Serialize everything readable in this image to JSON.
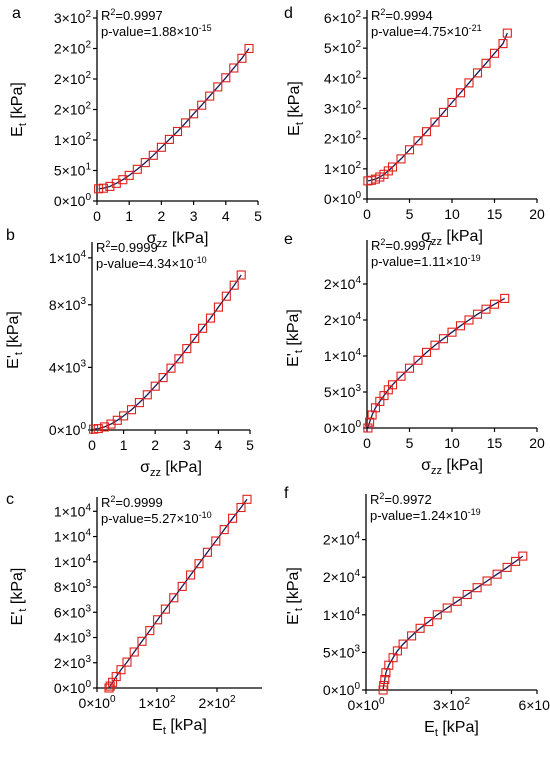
{
  "colors": {
    "marker": "#e0201b",
    "fit_line": "#1a1a5a",
    "axis": "#000000"
  },
  "chart_data": [
    {
      "type": "scatter",
      "panel_label": "a",
      "xlabel": {
        "main": "σ",
        "sub": "zz",
        "tail": " [kPa]"
      },
      "ylabel": {
        "main": "E",
        "sub": "t",
        "tail": " [kPa]"
      },
      "xlim": [
        0,
        5
      ],
      "ylim": [
        0,
        300
      ],
      "xticks": [
        {
          "v": 0,
          "label": "0"
        },
        {
          "v": 1,
          "label": "1"
        },
        {
          "v": 2,
          "label": "2"
        },
        {
          "v": 3,
          "label": "3"
        },
        {
          "v": 4,
          "label": "4"
        },
        {
          "v": 5,
          "label": "5"
        }
      ],
      "yticks": [
        {
          "v": 0,
          "m": "0×10",
          "e": "0"
        },
        {
          "v": 50,
          "m": "5×10",
          "e": "1"
        },
        {
          "v": 100,
          "m": "1×10",
          "e": "2"
        },
        {
          "v": 150,
          "m": "2×10",
          "e": "2"
        },
        {
          "v": 200,
          "m": "2×10",
          "e": "2"
        },
        {
          "v": 250,
          "m": "2×10",
          "e": "2"
        },
        {
          "v": 300,
          "m": "3×10",
          "e": "2"
        }
      ],
      "r2": "0.9997",
      "pvalue": {
        "m": "1.88×10",
        "e": "-15"
      },
      "series": [
        {
          "x": [
            0.05,
            0.2,
            0.4,
            0.6,
            0.8,
            1.0,
            1.25,
            1.5,
            1.75,
            2.0,
            2.25,
            2.5,
            2.75,
            3.0,
            3.25,
            3.5,
            3.75,
            4.0,
            4.25,
            4.5,
            4.72
          ],
          "y": [
            20,
            21,
            24,
            29,
            35,
            42,
            52,
            63,
            75,
            88,
            101,
            114,
            128,
            143,
            157,
            172,
            187,
            202,
            218,
            234,
            250
          ]
        }
      ]
    },
    {
      "type": "scatter",
      "panel_label": "b",
      "xlabel": {
        "main": "σ",
        "sub": "zz",
        "tail": " [kPa]"
      },
      "ylabel": {
        "main": "E'",
        "sub": "t",
        "tail": " [kPa]"
      },
      "xlim": [
        0,
        5
      ],
      "ylim": [
        0,
        11500
      ],
      "xticks": [
        {
          "v": 0,
          "label": "0"
        },
        {
          "v": 1,
          "label": "1"
        },
        {
          "v": 2,
          "label": "2"
        },
        {
          "v": 3,
          "label": "3"
        },
        {
          "v": 4,
          "label": "4"
        },
        {
          "v": 5,
          "label": "5"
        }
      ],
      "yticks": [
        {
          "v": 0,
          "m": "0×10",
          "e": "0"
        },
        {
          "v": 4000,
          "m": "4×10",
          "e": "3"
        },
        {
          "v": 8000,
          "m": "8×10",
          "e": "3"
        },
        {
          "v": 11000,
          "m": "1×10",
          "e": "4"
        }
      ],
      "r2": "0.9999",
      "pvalue": {
        "m": "4.34×10",
        "e": "-10"
      },
      "series": [
        {
          "x": [
            0.05,
            0.2,
            0.4,
            0.6,
            0.8,
            1.0,
            1.25,
            1.5,
            1.75,
            2.0,
            2.25,
            2.5,
            2.75,
            3.0,
            3.25,
            3.5,
            3.75,
            4.0,
            4.25,
            4.5,
            4.72
          ],
          "y": [
            50,
            90,
            200,
            380,
            620,
            900,
            1300,
            1750,
            2250,
            2800,
            3350,
            3950,
            4550,
            5200,
            5850,
            6500,
            7150,
            7850,
            8550,
            9250,
            9900
          ]
        }
      ]
    },
    {
      "type": "scatter",
      "panel_label": "c",
      "xlabel": {
        "main": "E",
        "sub": "t",
        "tail": " [kPa]"
      },
      "ylabel": {
        "main": "E'",
        "sub": "t",
        "tail": " [kPa]"
      },
      "xlim": [
        0,
        275
      ],
      "ylim": [
        0,
        14500
      ],
      "xticks": [
        {
          "v": 0,
          "m": "0×10",
          "e": "0"
        },
        {
          "v": 100,
          "m": "1×10",
          "e": "2"
        },
        {
          "v": 200,
          "m": "2×10",
          "e": "2"
        }
      ],
      "yticks": [
        {
          "v": 0,
          "m": "0×10",
          "e": "0"
        },
        {
          "v": 2000,
          "m": "2×10",
          "e": "3"
        },
        {
          "v": 4000,
          "m": "4×10",
          "e": "3"
        },
        {
          "v": 6000,
          "m": "6×10",
          "e": "3"
        },
        {
          "v": 8000,
          "m": "8×10",
          "e": "3"
        },
        {
          "v": 10000,
          "m": "1×10",
          "e": "4"
        },
        {
          "v": 12000,
          "m": "1×10",
          "e": "4"
        },
        {
          "v": 14000,
          "m": "1×10",
          "e": "4"
        }
      ],
      "r2": "0.9999",
      "pvalue": {
        "m": "5.27×10",
        "e": "-10"
      },
      "series": [
        {
          "x": [
            20,
            22,
            26,
            32,
            40,
            50,
            62,
            75,
            88,
            101,
            114,
            128,
            142,
            156,
            170,
            184,
            198,
            212,
            226,
            240,
            250
          ],
          "y": [
            0,
            150,
            450,
            900,
            1450,
            2050,
            2850,
            3700,
            4550,
            5400,
            6250,
            7150,
            8050,
            8950,
            9850,
            10750,
            11650,
            12550,
            13450,
            14300,
            14950
          ]
        }
      ]
    },
    {
      "type": "scatter",
      "panel_label": "d",
      "xlabel": {
        "main": "σ",
        "sub": "zz",
        "tail": " [kPa]"
      },
      "ylabel": {
        "main": "E",
        "sub": "t",
        "tail": " [kPa]"
      },
      "xlim": [
        0,
        20
      ],
      "ylim": [
        0,
        600
      ],
      "xticks": [
        {
          "v": 0,
          "label": "0"
        },
        {
          "v": 5,
          "label": "5"
        },
        {
          "v": 10,
          "label": "10"
        },
        {
          "v": 15,
          "label": "15"
        },
        {
          "v": 20,
          "label": "20"
        }
      ],
      "yticks": [
        {
          "v": 0,
          "m": "0×10",
          "e": "0"
        },
        {
          "v": 100,
          "m": "1×10",
          "e": "2"
        },
        {
          "v": 200,
          "m": "2×10",
          "e": "2"
        },
        {
          "v": 300,
          "m": "3×10",
          "e": "2"
        },
        {
          "v": 400,
          "m": "4×10",
          "e": "2"
        },
        {
          "v": 500,
          "m": "5×10",
          "e": "2"
        },
        {
          "v": 600,
          "m": "6×10",
          "e": "2"
        }
      ],
      "r2": "0.9994",
      "pvalue": {
        "m": "4.75×10",
        "e": "-21"
      },
      "series": [
        {
          "x": [
            0.1,
            0.5,
            1,
            1.5,
            2,
            2.5,
            3,
            4,
            5,
            6,
            7,
            8,
            9,
            10,
            11,
            12,
            13,
            14,
            15,
            16,
            16.5
          ],
          "y": [
            60,
            62,
            66,
            73,
            82,
            93,
            106,
            133,
            163,
            193,
            223,
            255,
            287,
            320,
            352,
            385,
            418,
            450,
            483,
            515,
            550
          ]
        }
      ]
    },
    {
      "type": "scatter",
      "panel_label": "e",
      "xlabel": {
        "main": "σ",
        "sub": "zz",
        "tail": " [kPa]"
      },
      "ylabel": {
        "main": "E'",
        "sub": "t",
        "tail": " [kPa]"
      },
      "xlim": [
        0,
        20
      ],
      "ylim": [
        0,
        25000
      ],
      "xticks": [
        {
          "v": 0,
          "label": "0"
        },
        {
          "v": 5,
          "label": "5"
        },
        {
          "v": 10,
          "label": "10"
        },
        {
          "v": 15,
          "label": "15"
        },
        {
          "v": 20,
          "label": "20"
        }
      ],
      "yticks": [
        {
          "v": 0,
          "m": "0×10",
          "e": "0"
        },
        {
          "v": 5000,
          "m": "5×10",
          "e": "3"
        },
        {
          "v": 10000,
          "m": "1×10",
          "e": "4"
        },
        {
          "v": 15000,
          "m": "2×10",
          "e": "4"
        },
        {
          "v": 20000,
          "m": "2×10",
          "e": "4"
        }
      ],
      "r2": "0.9997",
      "pvalue": {
        "m": "1.11×10",
        "e": "-19"
      },
      "series": [
        {
          "x": [
            0.1,
            0.3,
            0.6,
            1,
            1.5,
            2,
            2.5,
            3,
            4,
            5,
            6,
            7,
            8,
            9,
            10,
            11,
            12,
            13,
            14,
            15,
            16.2
          ],
          "y": [
            0,
            800,
            1800,
            2800,
            3700,
            4500,
            5300,
            6000,
            7200,
            8300,
            9400,
            10500,
            11500,
            12400,
            13300,
            14200,
            15000,
            15800,
            16500,
            17200,
            18000
          ]
        }
      ]
    },
    {
      "type": "scatter",
      "panel_label": "f",
      "xlabel": {
        "main": "E",
        "sub": "t",
        "tail": " [kPa]"
      },
      "ylabel": {
        "main": "E'",
        "sub": "t",
        "tail": " [kPa]"
      },
      "xlim": [
        0,
        600
      ],
      "ylim": [
        0,
        25000
      ],
      "xticks": [
        {
          "v": 0,
          "m": "0×10",
          "e": "0"
        },
        {
          "v": 300,
          "m": "3×10",
          "e": "2"
        },
        {
          "v": 600,
          "m": "6×10",
          "e": "2"
        }
      ],
      "yticks": [
        {
          "v": 0,
          "m": "0×10",
          "e": "0"
        },
        {
          "v": 5000,
          "m": "5×10",
          "e": "3"
        },
        {
          "v": 10000,
          "m": "1×10",
          "e": "4"
        },
        {
          "v": 15000,
          "m": "2×10",
          "e": "4"
        },
        {
          "v": 20000,
          "m": "2×10",
          "e": "4"
        }
      ],
      "r2": "0.9972",
      "pvalue": {
        "m": "1.24×10",
        "e": "-19"
      },
      "series": [
        {
          "x": [
            60,
            62,
            66,
            70,
            80,
            95,
            110,
            130,
            160,
            190,
            220,
            250,
            285,
            320,
            355,
            390,
            425,
            460,
            495,
            525,
            550
          ],
          "y": [
            0,
            600,
            1400,
            2300,
            3300,
            4300,
            5200,
            6100,
            7200,
            8200,
            9100,
            10000,
            10900,
            11800,
            12700,
            13600,
            14500,
            15400,
            16300,
            17100,
            17800
          ]
        }
      ]
    }
  ]
}
